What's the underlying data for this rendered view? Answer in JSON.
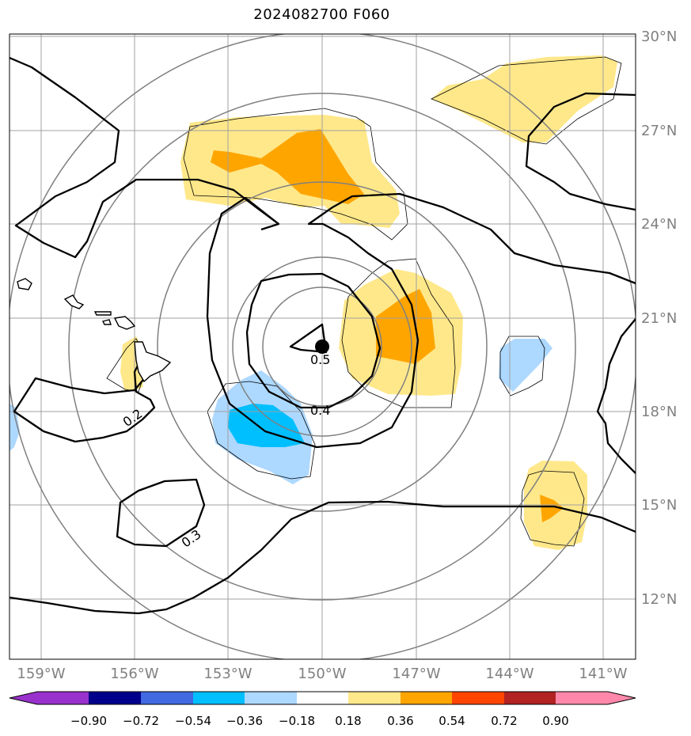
{
  "title": "2024082700 F060",
  "map": {
    "lat_ticks": [
      "30°N",
      "27°N",
      "24°N",
      "21°N",
      "18°N",
      "15°N",
      "12°N"
    ],
    "lon_ticks": [
      "159°W",
      "156°W",
      "153°W",
      "150°W",
      "147°W",
      "144°W",
      "141°W"
    ],
    "contour_labels": [
      "0.5",
      "0.4",
      "0.2",
      "0.3"
    ],
    "storm_center": {
      "lat": 20.0,
      "lon": "150°W"
    },
    "gridline_color": "#a0a0a0",
    "range_ring_color": "#808080"
  },
  "colorbar": {
    "tick_labels": [
      "−0.90",
      "−0.72",
      "−0.54",
      "−0.36",
      "−0.18",
      "0.18",
      "0.36",
      "0.54",
      "0.72",
      "0.90"
    ],
    "colors": [
      "#9932cc",
      "#00008b",
      "#4169e1",
      "#00bfff",
      "#add8ff",
      "#ffffff",
      "#ffe88a",
      "#ffa500",
      "#ff4500",
      "#b22222",
      "#ff88aa"
    ]
  }
}
